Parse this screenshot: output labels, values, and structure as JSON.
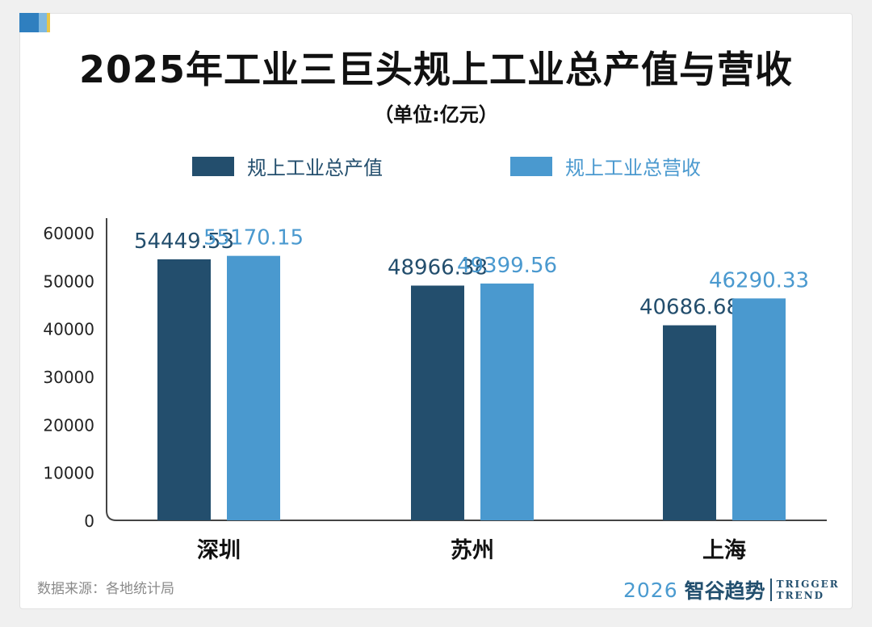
{
  "title": "2025年工业三巨头规上工业总产值与营收",
  "subtitle": "（单位:亿元）",
  "source": "数据来源：各地统计局",
  "brand": {
    "year": "2026",
    "name": "智谷趋势",
    "en_line1": "TRIGGER",
    "en_line2": "TREND"
  },
  "colors": {
    "series1": "#234e6d",
    "series2": "#4a99cf",
    "corner1": "#2f7fbf",
    "corner2": "#7fb8e0",
    "corner3": "#e8c64a"
  },
  "chart_data": {
    "type": "bar",
    "title": "2025年工业三巨头规上工业总产值与营收",
    "categories": [
      "深圳",
      "苏州",
      "上海"
    ],
    "series": [
      {
        "name": "规上工业总产值",
        "values": [
          54449.53,
          48966.38,
          40686.68
        ],
        "labels": [
          "54449.53",
          "48966.38",
          "40686.68"
        ]
      },
      {
        "name": "规上工业总营收",
        "values": [
          55170.15,
          49399.56,
          46290.33
        ],
        "labels": [
          "55170.15",
          "49399.56",
          "46290.33"
        ]
      }
    ],
    "yticks": [
      "0",
      "10000",
      "20000",
      "30000",
      "40000",
      "50000",
      "60000"
    ],
    "ylim": [
      0,
      60000
    ],
    "grid": false,
    "legend": "top"
  }
}
